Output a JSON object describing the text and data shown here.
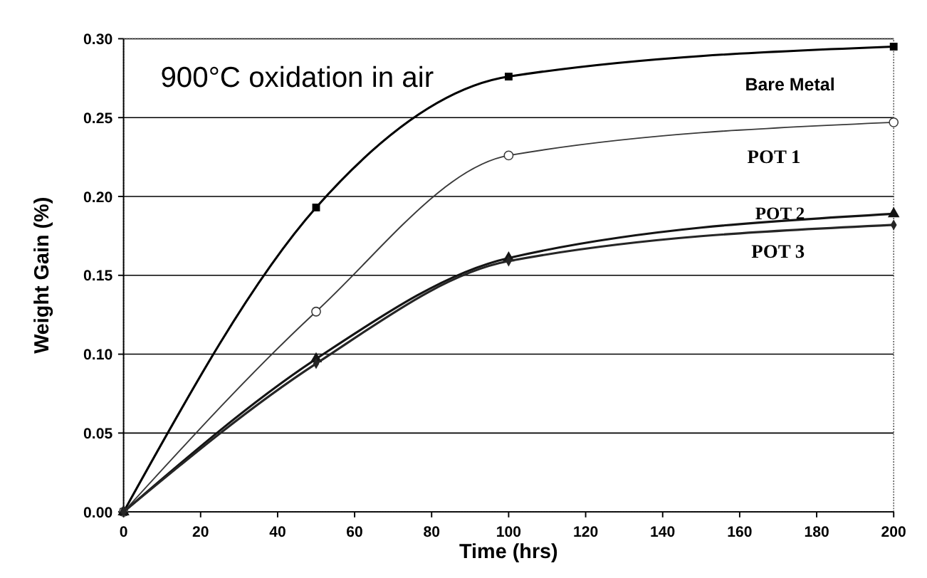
{
  "chart_data": {
    "type": "line",
    "xlabel": "Time (hrs)",
    "ylabel": "Weight Gain (%)",
    "annotations": [
      "900°C oxidation in air"
    ],
    "x": [
      0,
      50,
      100,
      200
    ],
    "series": [
      {
        "name": "Bare Metal",
        "color": "#000000",
        "marker": "square",
        "values": [
          0,
          0.193,
          0.276,
          0.295
        ]
      },
      {
        "name": "POT 1",
        "color": "#3a3a3a",
        "marker": "circle",
        "values": [
          0,
          0.127,
          0.226,
          0.247
        ]
      },
      {
        "name": "POT 2",
        "color": "#141414",
        "marker": "triangle",
        "values": [
          0,
          0.097,
          0.161,
          0.189
        ]
      },
      {
        "name": "POT 3",
        "color": "#262626",
        "marker": "diamond",
        "values": [
          0,
          0.094,
          0.159,
          0.182
        ]
      }
    ],
    "xlim": [
      0,
      200
    ],
    "xticks": [
      0,
      20,
      40,
      60,
      80,
      100,
      120,
      140,
      160,
      180,
      200
    ],
    "ylim": [
      0,
      0.3
    ],
    "yticks": [
      {
        "value": 0,
        "label": "0.00"
      },
      {
        "value": 0.05,
        "label": "0.05"
      },
      {
        "value": 0.1,
        "label": "0.10"
      },
      {
        "value": 0.15,
        "label": "0.15"
      },
      {
        "value": 0.2,
        "label": "0.20"
      },
      {
        "value": 0.25,
        "label": "0.25"
      },
      {
        "value": 0.3,
        "label": "0.30"
      }
    ],
    "grid": "y",
    "legend": false,
    "line_style": "solid"
  }
}
